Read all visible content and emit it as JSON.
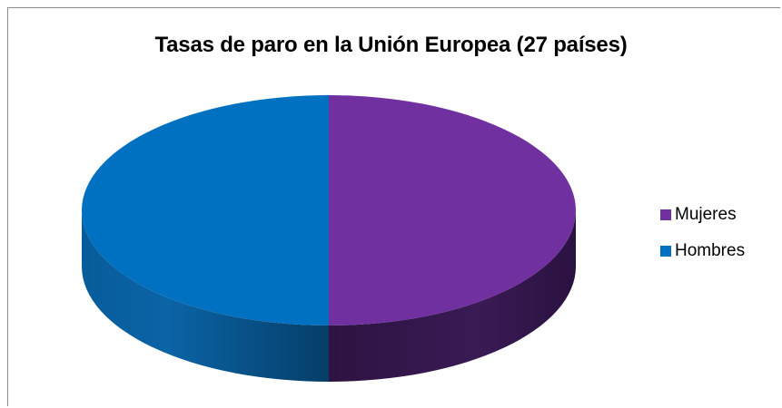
{
  "chart_data": {
    "type": "pie",
    "title": "Tasas de paro en la Unión Europea (27 países)",
    "categories": [
      "Mujeres",
      "Hombres"
    ],
    "values": [
      50,
      50
    ],
    "colors": [
      "#7030a0",
      "#0070c0"
    ],
    "legend_position": "right"
  }
}
